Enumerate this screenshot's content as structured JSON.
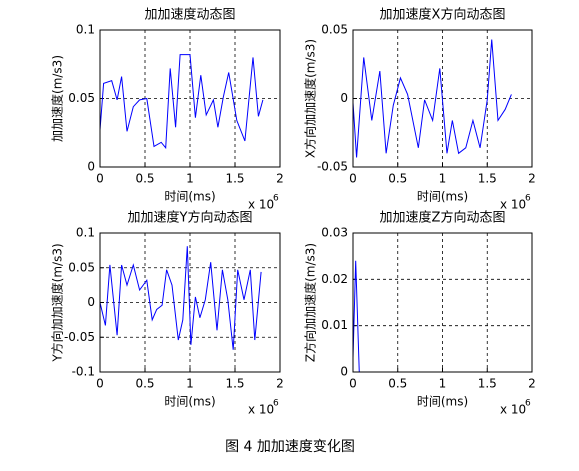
{
  "chart_data": [
    {
      "type": "line",
      "title": "加加速度动态图",
      "xlabel": "时间(ms)",
      "ylabel": "加加速度(m/s3)",
      "x_multiplier": "x 10",
      "x_multiplier_exp": "6",
      "xlim": [
        0,
        2
      ],
      "xticks": [
        0,
        0.5,
        1,
        1.5,
        2
      ],
      "ylim": [
        0,
        0.1
      ],
      "yticks": [
        0,
        0.05,
        0.1
      ],
      "grid": true,
      "color": "#0000ff",
      "x": [
        0,
        0.04,
        0.13,
        0.19,
        0.24,
        0.3,
        0.37,
        0.44,
        0.52,
        0.6,
        0.68,
        0.73,
        0.78,
        0.84,
        0.89,
        1.0,
        1.06,
        1.12,
        1.18,
        1.26,
        1.31,
        1.37,
        1.43,
        1.52,
        1.61,
        1.7,
        1.76,
        1.81
      ],
      "values": [
        0.027,
        0.061,
        0.063,
        0.049,
        0.066,
        0.026,
        0.044,
        0.049,
        0.05,
        0.015,
        0.018,
        0.014,
        0.072,
        0.029,
        0.082,
        0.082,
        0.036,
        0.067,
        0.038,
        0.049,
        0.029,
        0.051,
        0.069,
        0.034,
        0.019,
        0.08,
        0.037,
        0.049
      ]
    },
    {
      "type": "line",
      "title": "加加速度X方向动态图",
      "xlabel": "时间(ms)",
      "ylabel": "X方向加加速度(m/s3)",
      "x_multiplier": "x 10",
      "x_multiplier_exp": "6",
      "xlim": [
        0,
        2
      ],
      "xticks": [
        0,
        0.5,
        1,
        1.5,
        2
      ],
      "ylim": [
        -0.05,
        0.05
      ],
      "yticks": [
        -0.05,
        0,
        0.05
      ],
      "grid": true,
      "color": "#0000ff",
      "x": [
        0,
        0.04,
        0.12,
        0.21,
        0.3,
        0.37,
        0.45,
        0.53,
        0.61,
        0.73,
        0.8,
        0.89,
        0.97,
        1.05,
        1.11,
        1.18,
        1.26,
        1.34,
        1.42,
        1.5,
        1.55,
        1.62,
        1.7,
        1.77
      ],
      "values": [
        -0.003,
        -0.043,
        0.03,
        -0.016,
        0.02,
        -0.04,
        -0.005,
        0.015,
        0.003,
        -0.036,
        -0.001,
        -0.016,
        0.022,
        -0.04,
        -0.016,
        -0.04,
        -0.036,
        -0.016,
        -0.036,
        -0.001,
        0.043,
        -0.016,
        -0.008,
        0.003
      ]
    },
    {
      "type": "line",
      "title": "加加速度Y方向动态图",
      "xlabel": "时间(ms)",
      "ylabel": "Y方向加加速度(m/s3)",
      "x_multiplier": "x 10",
      "x_multiplier_exp": "6",
      "xlim": [
        0,
        2
      ],
      "xticks": [
        0,
        0.5,
        1,
        1.5,
        2
      ],
      "ylim": [
        -0.1,
        0.1
      ],
      "yticks": [
        -0.1,
        -0.05,
        0,
        0.05,
        0.1
      ],
      "grid": true,
      "color": "#0000ff",
      "x": [
        0,
        0.06,
        0.11,
        0.19,
        0.24,
        0.3,
        0.37,
        0.44,
        0.52,
        0.58,
        0.63,
        0.69,
        0.74,
        0.8,
        0.87,
        0.92,
        0.97,
        1.01,
        1.06,
        1.11,
        1.17,
        1.23,
        1.3,
        1.36,
        1.42,
        1.48,
        1.53,
        1.6,
        1.67,
        1.72,
        1.79
      ],
      "values": [
        0.0,
        -0.033,
        0.054,
        -0.047,
        0.054,
        0.025,
        0.054,
        0.018,
        0.032,
        -0.025,
        -0.01,
        -0.004,
        0.047,
        0.025,
        -0.054,
        -0.025,
        0.081,
        -0.061,
        0.008,
        -0.022,
        0.004,
        0.058,
        -0.04,
        0.047,
        0.004,
        -0.068,
        0.047,
        0.004,
        0.047,
        -0.054,
        0.044
      ]
    },
    {
      "type": "line",
      "title": "加加速度Z方向动态图",
      "xlabel": "时间(ms)",
      "ylabel": "Z方向加加速度(m/s3)",
      "x_multiplier": "x 10",
      "x_multiplier_exp": "6",
      "xlim": [
        0,
        2
      ],
      "xticks": [
        0,
        0.5,
        1,
        1.5,
        2
      ],
      "ylim": [
        0,
        0.03
      ],
      "yticks": [
        0,
        0.01,
        0.02,
        0.03
      ],
      "grid": true,
      "color": "#0000ff",
      "x": [
        0,
        0.03,
        0.07,
        1.8
      ],
      "values": [
        0.003,
        0.024,
        0,
        0
      ]
    }
  ],
  "caption": "图 4  加加速度变化图"
}
